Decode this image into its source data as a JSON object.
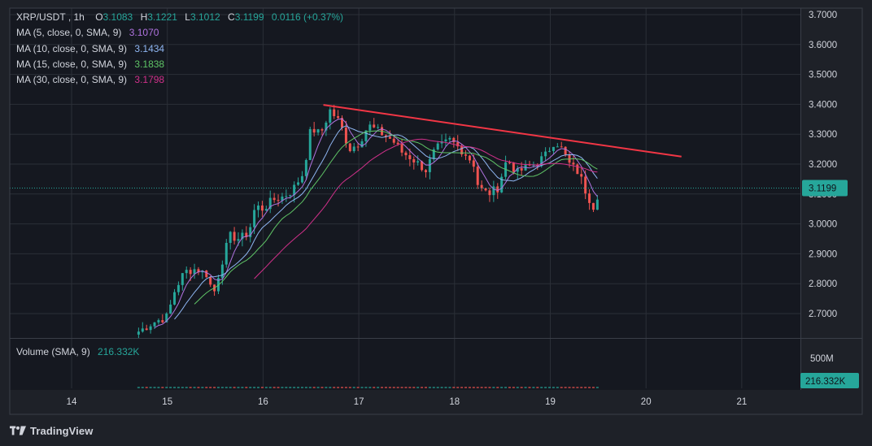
{
  "header": {
    "symbol": "XRP/USDT",
    "interval": "1h",
    "open_label": "O",
    "open": "3.1083",
    "high_label": "H",
    "high": "3.1221",
    "low_label": "L",
    "low": "3.1012",
    "close_label": "C",
    "close": "3.1199",
    "change": "0.0116 (+0.37%)"
  },
  "indicators": [
    {
      "label": "MA (5, close, 0, SMA, 9)",
      "value": "3.1070",
      "color": "#b073e0"
    },
    {
      "label": "MA (10, close, 0, SMA, 9)",
      "value": "3.1434",
      "color": "#8fb6f2"
    },
    {
      "label": "MA (15, close, 0, SMA, 9)",
      "value": "3.1838",
      "color": "#5fc466"
    },
    {
      "label": "MA (30, close, 0, SMA, 9)",
      "value": "3.1798",
      "color": "#d0308a"
    }
  ],
  "volume": {
    "label": "Volume (SMA, 9)",
    "value": "216.332K",
    "axis_label": "500M",
    "badge": "216.332K"
  },
  "price_badge": "3.1199",
  "brand": "TradingView",
  "colors": {
    "up": "#26a69a",
    "down": "#ef5350",
    "trendline": "#f23645",
    "background": "#1e2128",
    "grid": "#2b2f37"
  },
  "chart_data": {
    "type": "candlestick",
    "x_axis": {
      "ticks": [
        "14",
        "15",
        "16",
        "17",
        "18",
        "19",
        "20",
        "21"
      ]
    },
    "y_axis": {
      "ticks": [
        "3.7000",
        "3.6000",
        "3.5000",
        "3.4000",
        "3.3000",
        "3.2000",
        "3.1000",
        "3.0000",
        "2.9000",
        "2.8000",
        "2.7000"
      ],
      "range": [
        2.68,
        3.72
      ]
    },
    "last_price": 3.1199,
    "trendline": {
      "from": {
        "day": 16.63,
        "price": 3.398
      },
      "to": {
        "day": 20.37,
        "price": 3.225
      }
    },
    "price_path": [
      [
        14.7,
        2.64
      ],
      [
        14.85,
        2.67
      ],
      [
        15.0,
        2.69
      ],
      [
        15.08,
        2.78
      ],
      [
        15.18,
        2.84
      ],
      [
        15.3,
        2.85
      ],
      [
        15.42,
        2.83
      ],
      [
        15.48,
        2.76
      ],
      [
        15.55,
        2.85
      ],
      [
        15.65,
        2.96
      ],
      [
        15.75,
        2.95
      ],
      [
        15.85,
        2.97
      ],
      [
        15.92,
        3.06
      ],
      [
        16.0,
        3.05
      ],
      [
        16.1,
        3.08
      ],
      [
        16.2,
        3.09
      ],
      [
        16.3,
        3.11
      ],
      [
        16.42,
        3.17
      ],
      [
        16.5,
        3.32
      ],
      [
        16.6,
        3.3
      ],
      [
        16.7,
        3.38
      ],
      [
        16.8,
        3.34
      ],
      [
        16.9,
        3.25
      ],
      [
        17.0,
        3.27
      ],
      [
        17.1,
        3.33
      ],
      [
        17.2,
        3.31
      ],
      [
        17.35,
        3.28
      ],
      [
        17.45,
        3.24
      ],
      [
        17.55,
        3.22
      ],
      [
        17.7,
        3.18
      ],
      [
        17.8,
        3.25
      ],
      [
        17.95,
        3.28
      ],
      [
        18.1,
        3.24
      ],
      [
        18.2,
        3.2
      ],
      [
        18.25,
        3.12
      ],
      [
        18.35,
        3.1
      ],
      [
        18.45,
        3.12
      ],
      [
        18.55,
        3.22
      ],
      [
        18.65,
        3.17
      ],
      [
        18.75,
        3.19
      ],
      [
        18.85,
        3.2
      ],
      [
        18.95,
        3.23
      ],
      [
        19.05,
        3.28
      ],
      [
        19.12,
        3.25
      ],
      [
        19.2,
        3.2
      ],
      [
        19.3,
        3.17
      ],
      [
        19.38,
        3.1
      ],
      [
        19.45,
        3.06
      ],
      [
        19.52,
        3.12
      ]
    ]
  }
}
